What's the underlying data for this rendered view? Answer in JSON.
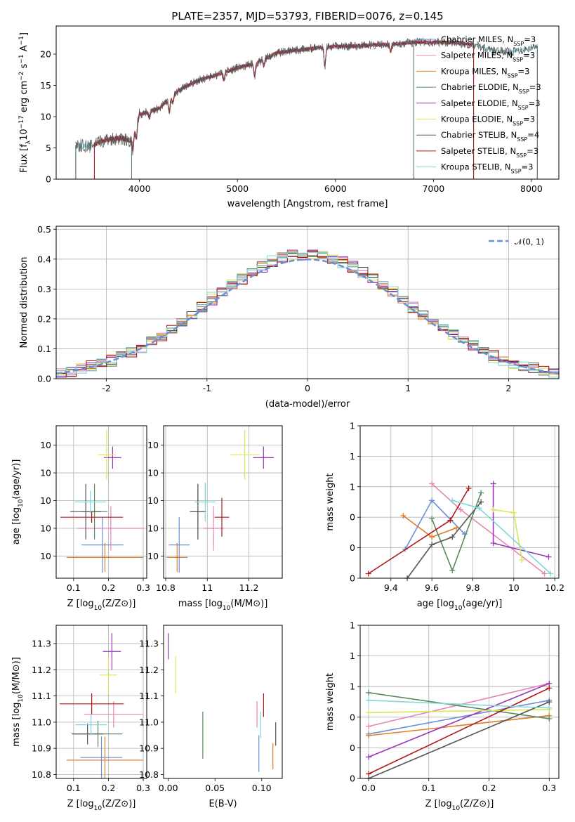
{
  "title": "PLATE=2357, MJD=53793, FIBERID=0076, z=0.145",
  "colors": {
    "Chabrier MILES": "#6a8fd8",
    "Salpeter MILES": "#e884b4",
    "Kroupa MILES": "#e07b27",
    "Chabrier ELODIE": "#5a8a5e",
    "Salpeter ELODIE": "#9a36b8",
    "Kroupa ELODIE": "#dde555",
    "Chabrier STELIB": "#555555",
    "Salpeter STELIB": "#b01a1a",
    "Kroupa STELIB": "#7fd8da",
    "gauss": "#6a8fd8"
  },
  "chart_data": [
    {
      "id": "spectrum",
      "type": "line",
      "xlabel": "wavelength [Angstrom, rest frame]",
      "ylabel": "Flux [f_λ10^-17 erg cm^-2 s^-1 A^-1]",
      "xlim": [
        3150,
        8280
      ],
      "ylim": [
        0,
        24.5
      ],
      "xticks": [
        4000,
        5000,
        6000,
        7000,
        8000
      ],
      "yticks": [
        0,
        5,
        10,
        15,
        20
      ],
      "grid": false,
      "legend_position": "top-right",
      "legend": [
        {
          "label": "Chabrier MILES, N",
          "sub": "SSP",
          "tail": "=3"
        },
        {
          "label": "Salpeter MILES, N",
          "sub": "SSP",
          "tail": "=3"
        },
        {
          "label": "Kroupa MILES, N",
          "sub": "SSP",
          "tail": "=3"
        },
        {
          "label": "Chabrier ELODIE, N",
          "sub": "SSP",
          "tail": "=3"
        },
        {
          "label": "Salpeter ELODIE, N",
          "sub": "SSP",
          "tail": "=3"
        },
        {
          "label": "Kroupa ELODIE, N",
          "sub": "SSP",
          "tail": "=3"
        },
        {
          "label": "Chabrier STELIB, N",
          "sub": "SSP",
          "tail": "=4"
        },
        {
          "label": "Salpeter STELIB, N",
          "sub": "SSP",
          "tail": "=3"
        },
        {
          "label": "Kroupa STELIB, N",
          "sub": "SSP",
          "tail": "=3"
        }
      ],
      "continuum": [
        [
          3350,
          5.4
        ],
        [
          3500,
          5.2
        ],
        [
          3650,
          6.3
        ],
        [
          3800,
          6.6
        ],
        [
          3920,
          6.2
        ],
        [
          4000,
          10.3
        ],
        [
          4200,
          11.3
        ],
        [
          4400,
          14.2
        ],
        [
          4600,
          15.8
        ],
        [
          4800,
          16.7
        ],
        [
          5000,
          17.8
        ],
        [
          5200,
          18.6
        ],
        [
          5400,
          20.2
        ],
        [
          5600,
          20.6
        ],
        [
          5800,
          21.0
        ],
        [
          6000,
          21.2
        ],
        [
          6200,
          21.3
        ],
        [
          6400,
          21.5
        ],
        [
          6600,
          21.6
        ],
        [
          6800,
          21.9
        ],
        [
          7000,
          21.9
        ],
        [
          7200,
          21.8
        ],
        [
          7400,
          21.6
        ],
        [
          7600,
          20.5
        ],
        [
          7800,
          20.4
        ],
        [
          8000,
          21.0
        ],
        [
          8100,
          21.6
        ]
      ],
      "model_ranges": [
        {
          "model": "Chabrier MILES",
          "x": [
            3540,
            7410
          ]
        },
        {
          "model": "Salpeter MILES",
          "x": [
            3540,
            7410
          ]
        },
        {
          "model": "Kroupa MILES",
          "x": [
            3540,
            7410
          ]
        },
        {
          "model": "Chabrier ELODIE",
          "x": [
            3920,
            6800
          ]
        },
        {
          "model": "Salpeter ELODIE",
          "x": [
            3920,
            6800
          ]
        },
        {
          "model": "Kroupa ELODIE",
          "x": [
            3920,
            6800
          ]
        },
        {
          "model": "Chabrier STELIB",
          "x": [
            3350,
            8060
          ]
        },
        {
          "model": "Salpeter STELIB",
          "x": [
            3540,
            7410
          ]
        },
        {
          "model": "Kroupa STELIB",
          "x": [
            3350,
            8060
          ]
        }
      ]
    },
    {
      "id": "residuals",
      "type": "step",
      "xlabel": "(data-model)/error",
      "ylabel": "Normed distribution",
      "xlim": [
        -2.5,
        2.5
      ],
      "ylim": [
        0,
        0.51
      ],
      "xticks": [
        -2,
        -1,
        0,
        1,
        2
      ],
      "yticks": [
        0.0,
        0.1,
        0.2,
        0.3,
        0.4,
        0.5
      ],
      "grid": true,
      "legend_position": "top-right",
      "legend": [
        {
          "label": "𝒩(0, 1)"
        }
      ],
      "gaussian": {
        "mean": 0,
        "sigma": 1
      },
      "bin_width": 0.1,
      "histograms": [
        {
          "model": "Chabrier MILES",
          "jitter": 0.013
        },
        {
          "model": "Salpeter MILES",
          "jitter": 0.018
        },
        {
          "model": "Kroupa MILES",
          "jitter": 0.016
        },
        {
          "model": "Chabrier ELODIE",
          "jitter": 0.019
        },
        {
          "model": "Salpeter ELODIE",
          "jitter": 0.02
        },
        {
          "model": "Kroupa ELODIE",
          "jitter": 0.017
        },
        {
          "model": "Chabrier STELIB",
          "jitter": 0.014
        },
        {
          "model": "Salpeter STELIB",
          "jitter": 0.02
        },
        {
          "model": "Kroupa STELIB",
          "jitter": 0.022
        }
      ]
    },
    {
      "id": "age_vs_Z",
      "type": "errorbar",
      "xlabel": "Z [log10(Z/Z⊙)]",
      "ylabel": "age [log10(age/yr)]",
      "xlim": [
        0.05,
        0.31
      ],
      "ylim": [
        9.52,
        10.07
      ],
      "xticks": [
        0.1,
        0.2,
        0.3
      ],
      "yticks": [
        9.6,
        9.7,
        9.8,
        9.9,
        10.0
      ],
      "grid": true,
      "points": [
        {
          "model": "Chabrier MILES",
          "x": 0.183,
          "y": 9.64,
          "xerr": 0.06,
          "yerr": 0.1
        },
        {
          "model": "Salpeter MILES",
          "x": 0.207,
          "y": 9.7,
          "xerr": 0.095,
          "yerr": 0.08
        },
        {
          "model": "Kroupa MILES",
          "x": 0.19,
          "y": 9.595,
          "xerr": 0.11,
          "yerr": 0.052
        },
        {
          "model": "Chabrier ELODIE",
          "x": 0.16,
          "y": 9.76,
          "xerr": 0.037,
          "yerr": 0.1
        },
        {
          "model": "Salpeter ELODIE",
          "x": 0.212,
          "y": 9.955,
          "xerr": 0.025,
          "yerr": 0.04
        },
        {
          "model": "Kroupa ELODIE",
          "x": 0.195,
          "y": 9.965,
          "xerr": 0.025,
          "yerr": 0.09
        },
        {
          "model": "Chabrier STELIB",
          "x": 0.135,
          "y": 9.76,
          "xerr": 0.045,
          "yerr": 0.1
        },
        {
          "model": "Salpeter STELIB",
          "x": 0.152,
          "y": 9.74,
          "xerr": 0.09,
          "yerr": 0.02
        },
        {
          "model": "Kroupa STELIB",
          "x": 0.148,
          "y": 9.795,
          "xerr": 0.045,
          "yerr": 0.04
        }
      ]
    },
    {
      "id": "age_vs_mass",
      "type": "errorbar",
      "xlabel": "mass [log10(M/M⊙)]",
      "ylabel": "",
      "xlim": [
        10.79,
        11.36
      ],
      "ylim": [
        9.52,
        10.07
      ],
      "xticks": [
        10.8,
        11.0,
        11.2
      ],
      "yticks": [
        9.6,
        9.7,
        9.8,
        9.9,
        10.0
      ],
      "grid": true,
      "points": [
        {
          "model": "Chabrier MILES",
          "x": 10.865,
          "y": 9.64,
          "xerr": 0.05,
          "yerr": 0.1
        },
        {
          "model": "Salpeter MILES",
          "x": 11.03,
          "y": 9.7,
          "xerr": 0.05,
          "yerr": 0.08
        },
        {
          "model": "Kroupa MILES",
          "x": 10.855,
          "y": 9.595,
          "xerr": 0.05,
          "yerr": 0.052
        },
        {
          "model": "Chabrier ELODIE",
          "x": 10.955,
          "y": 9.76,
          "xerr": 0.04,
          "yerr": 0.1
        },
        {
          "model": "Salpeter ELODIE",
          "x": 11.27,
          "y": 9.955,
          "xerr": 0.05,
          "yerr": 0.04
        },
        {
          "model": "Kroupa ELODIE",
          "x": 11.18,
          "y": 9.965,
          "xerr": 0.07,
          "yerr": 0.09
        },
        {
          "model": "Chabrier STELIB",
          "x": 10.955,
          "y": 9.76,
          "xerr": 0.035,
          "yerr": 0.1
        },
        {
          "model": "Salpeter STELIB",
          "x": 11.07,
          "y": 9.74,
          "xerr": 0.035,
          "yerr": 0.07
        },
        {
          "model": "Kroupa STELIB",
          "x": 10.99,
          "y": 9.795,
          "xerr": 0.05,
          "yerr": 0.07
        }
      ]
    },
    {
      "id": "weight_vs_age",
      "type": "line",
      "xlabel": "age [log10(age/yr)]",
      "ylabel": "mass weight",
      "xlim": [
        9.25,
        10.22
      ],
      "ylim": [
        0,
        1.0
      ],
      "xticks": [
        9.4,
        9.6,
        9.8,
        10.0,
        10.2
      ],
      "yticks": [
        0.0,
        0.2,
        0.4,
        0.6,
        0.8,
        1.0
      ],
      "grid": true,
      "series": [
        {
          "model": "Chabrier MILES",
          "x": [
            9.47,
            9.6,
            9.76
          ],
          "y": [
            0.19,
            0.51,
            0.29
          ]
        },
        {
          "model": "Salpeter MILES",
          "x": [
            9.6,
            9.74,
            10.15
          ],
          "y": [
            0.62,
            0.45,
            0.03
          ]
        },
        {
          "model": "Kroupa MILES",
          "x": [
            9.46,
            9.6,
            9.72
          ],
          "y": [
            0.41,
            0.27,
            0.33
          ]
        },
        {
          "model": "Chabrier ELODIE",
          "x": [
            9.6,
            9.7,
            9.84
          ],
          "y": [
            0.39,
            0.05,
            0.56
          ]
        },
        {
          "model": "Salpeter ELODIE",
          "x": [
            9.9,
            9.9,
            10.17
          ],
          "y": [
            0.62,
            0.23,
            0.14
          ]
        },
        {
          "model": "Kroupa ELODIE",
          "x": [
            9.9,
            10.0,
            10.04
          ],
          "y": [
            0.45,
            0.43,
            0.12
          ]
        },
        {
          "model": "Chabrier STELIB",
          "x": [
            9.48,
            9.6,
            9.7,
            9.84
          ],
          "y": [
            0.0,
            0.22,
            0.27,
            0.5
          ]
        },
        {
          "model": "Salpeter STELIB",
          "x": [
            9.29,
            9.69,
            9.78
          ],
          "y": [
            0.03,
            0.38,
            0.59
          ]
        },
        {
          "model": "Kroupa STELIB",
          "x": [
            9.7,
            9.83,
            10.18
          ],
          "y": [
            0.51,
            0.46,
            0.03
          ]
        }
      ]
    },
    {
      "id": "mass_vs_Z",
      "type": "errorbar",
      "xlabel": "Z [log10(Z/Z⊙)]",
      "ylabel": "mass [log10(M/M⊙)]",
      "xlim": [
        0.05,
        0.31
      ],
      "ylim": [
        10.785,
        11.37
      ],
      "xticks": [
        0.1,
        0.2,
        0.3
      ],
      "yticks": [
        10.8,
        10.9,
        11.0,
        11.1,
        11.2,
        11.3
      ],
      "grid": true,
      "points": [
        {
          "model": "Chabrier MILES",
          "x": 0.18,
          "y": 10.865,
          "xerr": 0.06,
          "yerr": 0.08
        },
        {
          "model": "Salpeter MILES",
          "x": 0.215,
          "y": 11.03,
          "xerr": 0.085,
          "yerr": 0.05
        },
        {
          "model": "Kroupa MILES",
          "x": 0.19,
          "y": 10.855,
          "xerr": 0.11,
          "yerr": 0.09
        },
        {
          "model": "Chabrier ELODIE",
          "x": 0.17,
          "y": 10.955,
          "xerr": 0.07,
          "yerr": 0.05
        },
        {
          "model": "Salpeter ELODIE",
          "x": 0.21,
          "y": 11.27,
          "xerr": 0.026,
          "yerr": 0.07
        },
        {
          "model": "Kroupa ELODIE",
          "x": 0.2,
          "y": 11.18,
          "xerr": 0.025,
          "yerr": 0.07
        },
        {
          "model": "Chabrier STELIB",
          "x": 0.14,
          "y": 10.955,
          "xerr": 0.045,
          "yerr": 0.04
        },
        {
          "model": "Salpeter STELIB",
          "x": 0.152,
          "y": 11.07,
          "xerr": 0.092,
          "yerr": 0.04
        },
        {
          "model": "Kroupa STELIB",
          "x": 0.15,
          "y": 10.99,
          "xerr": 0.045,
          "yerr": 0.04
        }
      ]
    },
    {
      "id": "mass_vs_EBV",
      "type": "errorbar",
      "xlabel": "E(B-V)",
      "ylabel": "",
      "xlim": [
        -0.005,
        0.122
      ],
      "ylim": [
        10.785,
        11.37
      ],
      "xticks": [
        0.0,
        0.05,
        0.1
      ],
      "xticklabels": [
        "0.00",
        "0.05",
        "0.10"
      ],
      "yticks": [
        10.8,
        10.9,
        11.0,
        11.1,
        11.2,
        11.3
      ],
      "grid": false,
      "points": [
        {
          "model": "Chabrier MILES",
          "x": 0.097,
          "y": 10.88,
          "xerr": 0,
          "yerr": 0.07
        },
        {
          "model": "Salpeter MILES",
          "x": 0.095,
          "y": 11.03,
          "xerr": 0,
          "yerr": 0.05
        },
        {
          "model": "Kroupa MILES",
          "x": 0.112,
          "y": 10.87,
          "xerr": 0,
          "yerr": 0.05
        },
        {
          "model": "Chabrier ELODIE",
          "x": 0.037,
          "y": 10.95,
          "xerr": 0,
          "yerr": 0.09
        },
        {
          "model": "Salpeter ELODIE",
          "x": 0.0,
          "y": 11.29,
          "xerr": 0,
          "yerr": 0.05
        },
        {
          "model": "Kroupa ELODIE",
          "x": 0.008,
          "y": 11.18,
          "xerr": 0,
          "yerr": 0.07
        },
        {
          "model": "Chabrier STELIB",
          "x": 0.115,
          "y": 10.955,
          "xerr": 0,
          "yerr": 0.045
        },
        {
          "model": "Salpeter STELIB",
          "x": 0.102,
          "y": 11.065,
          "xerr": 0,
          "yerr": 0.045
        },
        {
          "model": "Kroupa STELIB",
          "x": 0.099,
          "y": 10.99,
          "xerr": 0,
          "yerr": 0.05
        }
      ]
    },
    {
      "id": "weight_vs_Z",
      "type": "line",
      "xlabel": "Z [log10(Z/Z⊙)]",
      "ylabel": "mass weight",
      "xlim": [
        -0.014,
        0.316
      ],
      "ylim": [
        0,
        1.0
      ],
      "xticks": [
        0.0,
        0.1,
        0.2,
        0.3
      ],
      "xticklabels": [
        "0.0",
        "0.1",
        "0.2",
        "0.3"
      ],
      "yticks": [
        0.0,
        0.2,
        0.4,
        0.6,
        0.8,
        1.0
      ],
      "grid": true,
      "series": [
        {
          "model": "Chabrier MILES",
          "x": [
            0.0,
            0.3
          ],
          "y": [
            0.29,
            0.51
          ]
        },
        {
          "model": "Salpeter MILES",
          "x": [
            0.0,
            0.3
          ],
          "y": [
            0.34,
            0.62
          ]
        },
        {
          "model": "Kroupa MILES",
          "x": [
            0.0,
            0.3
          ],
          "y": [
            0.28,
            0.41
          ]
        },
        {
          "model": "Chabrier ELODIE",
          "x": [
            0.0,
            0.3
          ],
          "y": [
            0.56,
            0.39
          ]
        },
        {
          "model": "Salpeter ELODIE",
          "x": [
            0.0,
            0.3
          ],
          "y": [
            0.14,
            0.62
          ]
        },
        {
          "model": "Kroupa ELODIE",
          "x": [
            0.0,
            0.3
          ],
          "y": [
            0.43,
            0.45
          ]
        },
        {
          "model": "Chabrier STELIB",
          "x": [
            0.0,
            0.3
          ],
          "y": [
            0.0,
            0.5
          ]
        },
        {
          "model": "Salpeter STELIB",
          "x": [
            0.0,
            0.3
          ],
          "y": [
            0.03,
            0.59
          ]
        },
        {
          "model": "Kroupa STELIB",
          "x": [
            0.0,
            0.3
          ],
          "y": [
            0.51,
            0.46
          ]
        }
      ]
    }
  ]
}
